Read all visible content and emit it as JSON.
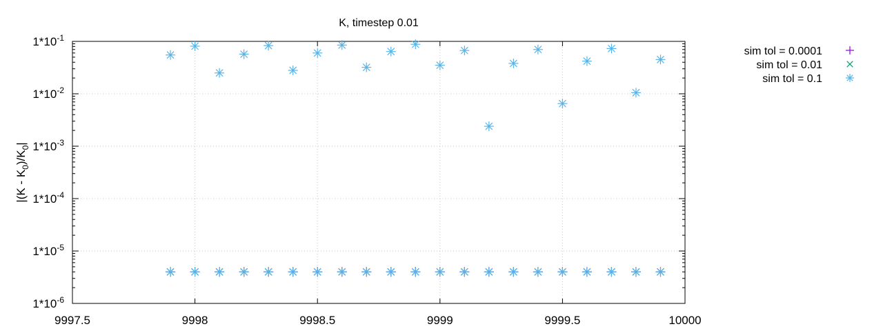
{
  "chart_data": {
    "type": "scatter",
    "title": "K, timestep 0.01",
    "xlabel": "",
    "ylabel": "|(K - K0)/K0|",
    "ylabel_parts": {
      "prefix": "|(K - K",
      "sub1": "0",
      "middle": ")/K",
      "sub2": "0",
      "suffix": "|"
    },
    "y_scale": "log",
    "xlim": [
      9997.5,
      10000
    ],
    "ylim": [
      1e-06,
      0.1
    ],
    "grid": true,
    "legend_position": "outside-right",
    "x_ticks": [
      {
        "value": 9997.5,
        "label": "9997.5"
      },
      {
        "value": 9998,
        "label": "9998"
      },
      {
        "value": 9998.5,
        "label": "9998.5"
      },
      {
        "value": 9999,
        "label": "9999"
      },
      {
        "value": 9999.5,
        "label": "9999.5"
      },
      {
        "value": 10000,
        "label": "10000"
      }
    ],
    "y_ticks": [
      {
        "value": 0.1,
        "label": "1*10",
        "exp": "-1"
      },
      {
        "value": 0.01,
        "label": "1*10",
        "exp": "-2"
      },
      {
        "value": 0.001,
        "label": "1*10",
        "exp": "-3"
      },
      {
        "value": 0.0001,
        "label": "1*10",
        "exp": "-4"
      },
      {
        "value": 1e-05,
        "label": "1*10",
        "exp": "-5"
      },
      {
        "value": 1e-06,
        "label": "1*10",
        "exp": "-6"
      }
    ],
    "series": [
      {
        "name": "sim tol = 0.0001",
        "marker": "plus",
        "color": "#9400d3",
        "x": [
          9997.9,
          9998.0,
          9998.1,
          9998.2,
          9998.3,
          9998.4,
          9998.5,
          9998.6,
          9998.7,
          9998.8,
          9998.9,
          9999.0,
          9999.1,
          9999.2,
          9999.3,
          9999.4,
          9999.5,
          9999.6,
          9999.7,
          9999.8,
          9999.9
        ],
        "y": [
          4e-06,
          4e-06,
          4e-06,
          4e-06,
          4e-06,
          4e-06,
          4e-06,
          4e-06,
          4e-06,
          4e-06,
          4e-06,
          4e-06,
          4e-06,
          4e-06,
          4e-06,
          4e-06,
          4e-06,
          4e-06,
          4e-06,
          4e-06,
          4e-06
        ]
      },
      {
        "name": "sim tol = 0.01",
        "marker": "cross",
        "color": "#009e73",
        "x": [
          9997.9,
          9998.0,
          9998.1,
          9998.2,
          9998.3,
          9998.4,
          9998.5,
          9998.6,
          9998.7,
          9998.8,
          9998.9,
          9999.0,
          9999.1,
          9999.2,
          9999.3,
          9999.4,
          9999.5,
          9999.6,
          9999.7,
          9999.8,
          9999.9
        ],
        "y": [
          4e-06,
          4e-06,
          4e-06,
          4e-06,
          4e-06,
          4e-06,
          4e-06,
          4e-06,
          4e-06,
          4e-06,
          4e-06,
          4e-06,
          4e-06,
          4e-06,
          4e-06,
          4e-06,
          4e-06,
          4e-06,
          4e-06,
          4e-06,
          4e-06
        ]
      },
      {
        "name": "sim tol = 0.1",
        "marker": "star",
        "color": "#56b4e9",
        "x": [
          9997.9,
          9998.0,
          9998.1,
          9998.2,
          9998.3,
          9998.4,
          9998.5,
          9998.6,
          9998.7,
          9998.8,
          9998.9,
          9999.0,
          9999.1,
          9999.2,
          9999.3,
          9999.4,
          9999.5,
          9999.6,
          9999.7,
          9999.8,
          9999.9
        ],
        "y": [
          0.055,
          0.081,
          0.025,
          0.057,
          0.083,
          0.028,
          0.06,
          0.085,
          0.032,
          0.064,
          0.088,
          0.035,
          0.067,
          0.0024,
          0.038,
          0.07,
          0.0065,
          0.042,
          0.073,
          0.0105,
          0.045
        ]
      },
      {
        "name": "",
        "marker": "star",
        "color": "#56b4e9",
        "x": [
          9997.9,
          9998.0,
          9998.1,
          9998.2,
          9998.3,
          9998.4,
          9998.5,
          9998.6,
          9998.7,
          9998.8,
          9998.9,
          9999.0,
          9999.1,
          9999.2,
          9999.3,
          9999.4,
          9999.5,
          9999.6,
          9999.7,
          9999.8,
          9999.9
        ],
        "y": [
          4e-06,
          4e-06,
          4e-06,
          4e-06,
          4e-06,
          4e-06,
          4e-06,
          4e-06,
          4e-06,
          4e-06,
          4e-06,
          4e-06,
          4e-06,
          4e-06,
          4e-06,
          4e-06,
          4e-06,
          4e-06,
          4e-06,
          4e-06,
          4e-06
        ]
      }
    ]
  }
}
